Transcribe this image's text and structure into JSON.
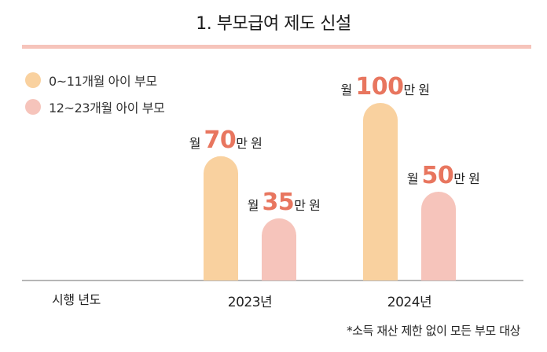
{
  "chart_data": {
    "type": "bar",
    "title": "1. 부모급여 제도 신설",
    "xlabel": "시행 년도",
    "categories": [
      "2023년",
      "2024년"
    ],
    "series": [
      {
        "name": "0~11개월 아이 부모",
        "values": [
          70,
          100
        ],
        "color": "#f9d19f"
      },
      {
        "name": "12~23개월 아이 부모",
        "values": [
          35,
          50
        ],
        "color": "#f6c4bb"
      }
    ],
    "value_prefix": "월",
    "value_suffix": "만 원",
    "value_color": "#e8765f",
    "ylim": [
      0,
      100
    ],
    "legend": "top-left",
    "grid": false,
    "baseline_color": "#8a8a8a"
  },
  "footnote": "*소득 재산 제한 없이 모든 부모 대상"
}
